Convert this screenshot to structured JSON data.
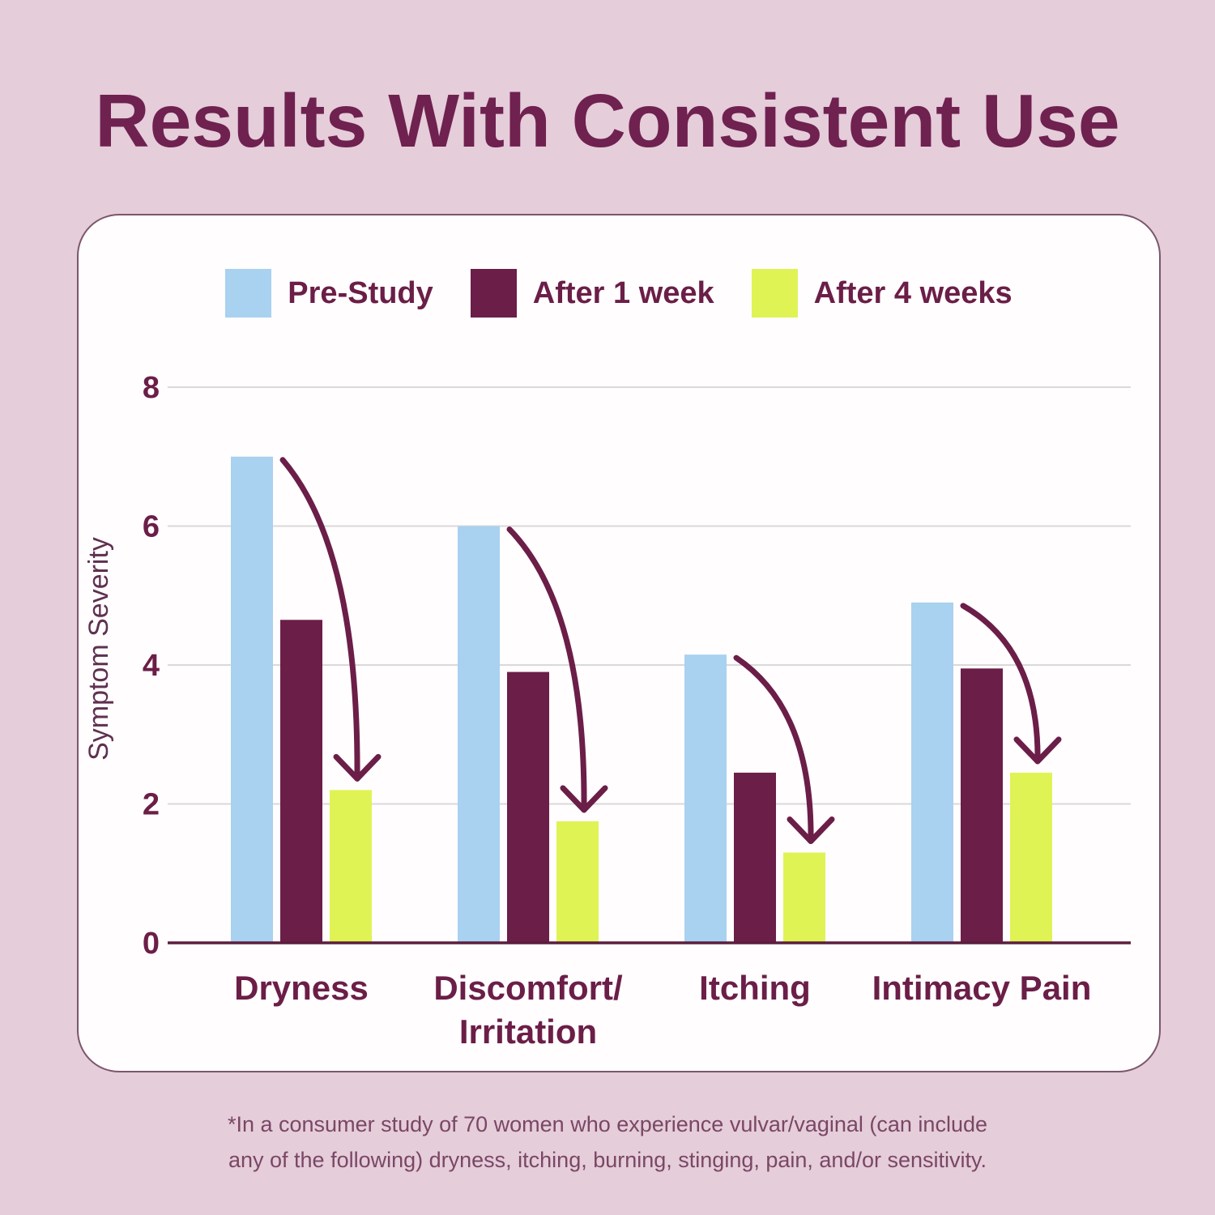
{
  "page": {
    "title": "Results With Consistent Use"
  },
  "colors": {
    "background": "#e5cdda",
    "card_background": "#fffdfe",
    "card_border": "#501e3a",
    "title": "#6f2150",
    "accent": "#6b1e47",
    "gridline": "#d9d9d9",
    "axis_line": "#5c1f3e",
    "ylabel": "#5f3050",
    "footnote": "#7a4765",
    "arrow": "#6b1e47"
  },
  "chart_data": {
    "type": "bar",
    "title": "",
    "xlabel": "",
    "ylabel": "Symptom Severity",
    "ylim": [
      0,
      8
    ],
    "yticks": [
      0,
      2,
      4,
      6,
      8
    ],
    "grid": true,
    "legend_position": "top",
    "categories": [
      "Dryness",
      "Discomfort/\nIrritation",
      "Itching",
      "Intimacy Pain"
    ],
    "series": [
      {
        "name": "Pre-Study",
        "color": "#a9d1f0",
        "values": [
          7.0,
          6.0,
          4.15,
          4.9
        ]
      },
      {
        "name": "After 1 week",
        "color": "#6b1e47",
        "values": [
          4.65,
          3.9,
          2.45,
          3.95
        ]
      },
      {
        "name": "After 4 weeks",
        "color": "#e0f355",
        "values": [
          2.2,
          1.75,
          1.3,
          2.45
        ]
      }
    ],
    "annotations": {
      "arrows": {
        "color": "#6b1e47",
        "description": "curved arrow in each category from top of Pre-Study bar down to top of After 4 weeks bar"
      }
    }
  },
  "footnote": {
    "line1": "*In a consumer study of 70 women who experience vulvar/vaginal (can include",
    "line2": "any of the following) dryness, itching, burning, stinging, pain, and/or sensitivity."
  }
}
